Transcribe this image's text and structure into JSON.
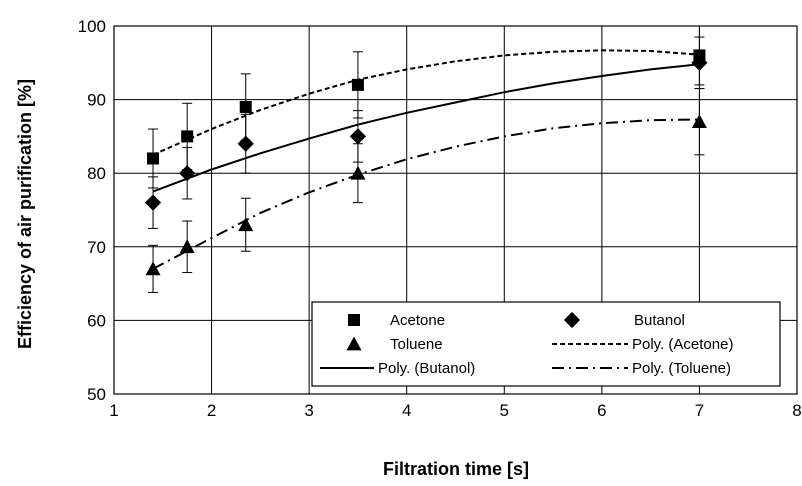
{
  "chart_data": {
    "type": "scatter",
    "title": "",
    "xlabel": "Filtration time [s]",
    "ylabel": "Efficiency of air purification  [%]",
    "xlim": [
      1,
      8
    ],
    "ylim": [
      50,
      100
    ],
    "xticks": [
      "1",
      "2",
      "3",
      "4",
      "5",
      "6",
      "7",
      "8"
    ],
    "yticks": [
      "50",
      "60",
      "70",
      "80",
      "90",
      "100"
    ],
    "grid": true,
    "legend_position": "bottom-right",
    "series": [
      {
        "name": "Acetone",
        "marker": "square",
        "x": [
          1.4,
          1.75,
          2.35,
          3.5,
          7.0
        ],
        "y": [
          82,
          85,
          89,
          92,
          96
        ],
        "err": [
          4,
          4.5,
          4.5,
          4.5,
          4
        ]
      },
      {
        "name": "Butanol",
        "marker": "diamond",
        "x": [
          1.4,
          1.75,
          2.35,
          3.5,
          7.0
        ],
        "y": [
          76,
          80,
          84,
          85,
          95
        ],
        "err": [
          3.5,
          3.5,
          4,
          3.5,
          3.5
        ]
      },
      {
        "name": "Toluene",
        "marker": "triangle",
        "x": [
          1.4,
          1.75,
          2.35,
          3.5,
          7.0
        ],
        "y": [
          67,
          70,
          73,
          80,
          87
        ],
        "err": [
          3.2,
          3.5,
          3.6,
          4,
          4.5
        ]
      }
    ],
    "trendlines": [
      {
        "name": "Poly. (Acetone)",
        "style": "dashed",
        "x": [
          1.4,
          2,
          2.5,
          3,
          3.5,
          4,
          4.5,
          5,
          5.5,
          6,
          6.5,
          7
        ],
        "y": [
          82.5,
          86,
          88.6,
          90.8,
          92.7,
          94.1,
          95.2,
          96.0,
          96.5,
          96.7,
          96.6,
          96.1
        ]
      },
      {
        "name": "Poly. (Butanol)",
        "style": "solid",
        "x": [
          1.4,
          2,
          2.5,
          3,
          3.5,
          4,
          4.5,
          5,
          5.5,
          6,
          6.5,
          7
        ],
        "y": [
          77.5,
          80.5,
          82.7,
          84.7,
          86.6,
          88.2,
          89.6,
          91.0,
          92.2,
          93.2,
          94.1,
          94.8
        ]
      },
      {
        "name": "Poly. (Toluene)",
        "style": "dash-dot",
        "x": [
          1.4,
          2,
          2.5,
          3,
          3.5,
          4,
          4.5,
          5,
          5.5,
          6,
          6.5,
          7
        ],
        "y": [
          67,
          71.2,
          74.6,
          77.4,
          79.8,
          81.9,
          83.6,
          85.0,
          86.1,
          86.8,
          87.2,
          87.3
        ]
      }
    ],
    "legend": [
      {
        "label": "Acetone",
        "symbol": "square"
      },
      {
        "label": "Butanol",
        "symbol": "diamond"
      },
      {
        "label": "Toluene",
        "symbol": "triangle"
      },
      {
        "label": "Poly. (Acetone)",
        "symbol": "dashed"
      },
      {
        "label": "Poly. (Butanol)",
        "symbol": "solid"
      },
      {
        "label": "Poly. (Toluene)",
        "symbol": "dash-dot"
      }
    ]
  }
}
